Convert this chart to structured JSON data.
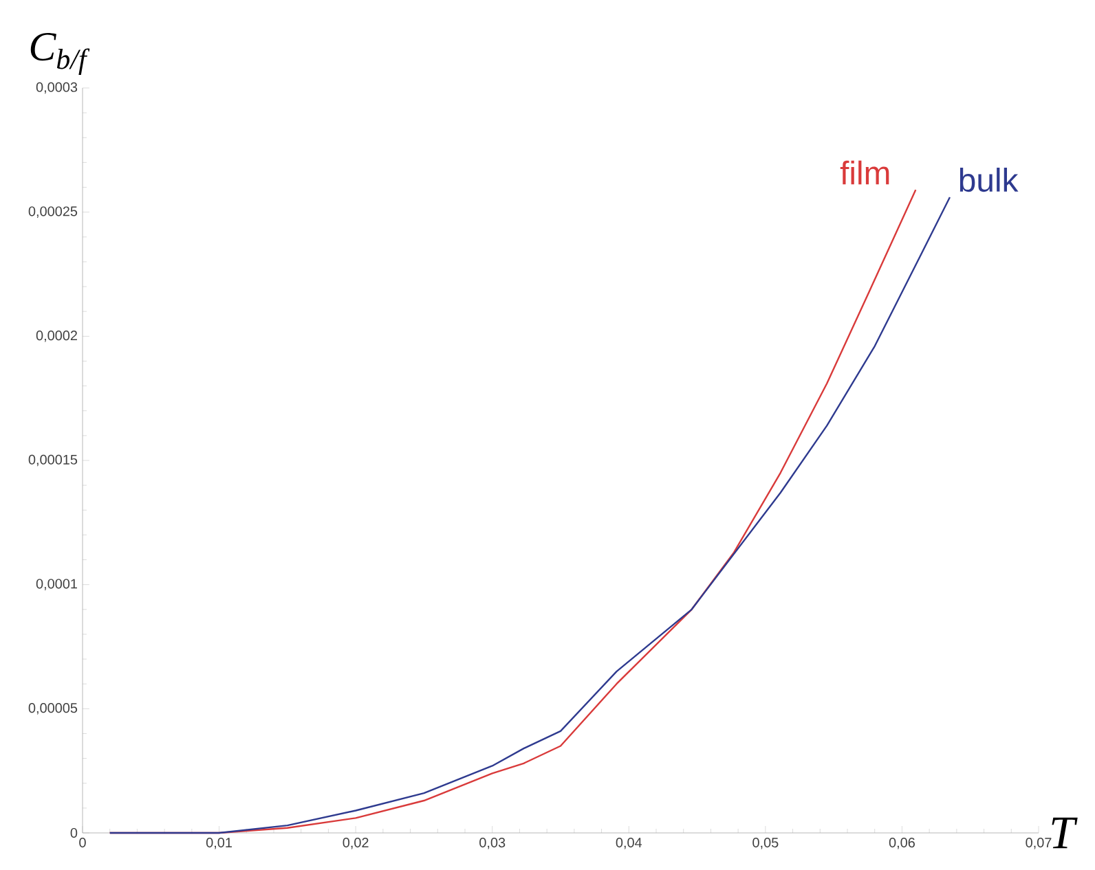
{
  "chart_data": {
    "type": "line",
    "xlabel": "T",
    "ylabel": "C$_{b/f}$",
    "xlim": [
      0,
      0.07
    ],
    "ylim": [
      0,
      0.0003
    ],
    "xticks": [
      0,
      {
        "value": 0.01,
        "label": "0,01"
      },
      {
        "value": 0.02,
        "label": "0,02"
      },
      {
        "value": 0.03,
        "label": "0,03"
      },
      {
        "value": 0.04,
        "label": "0,04"
      },
      {
        "value": 0.05,
        "label": "0,05"
      },
      {
        "value": 0.06,
        "label": "0,06"
      },
      {
        "value": 0.07,
        "label": "0,07"
      }
    ],
    "yticks": [
      0,
      {
        "value": 5e-05,
        "label": "0,00005"
      },
      {
        "value": 0.0001,
        "label": "0,0001"
      },
      {
        "value": 0.00015,
        "label": "0,00015"
      },
      {
        "value": 0.0002,
        "label": "0,0002"
      },
      {
        "value": 0.00025,
        "label": "0,00025"
      },
      {
        "value": 0.0003,
        "label": "0,0003"
      }
    ],
    "grid": false,
    "legend": false,
    "marker": "none",
    "line_style": "solid",
    "series": [
      {
        "name": "film",
        "color": "#d93a3a",
        "x": [
          0.002,
          0.01,
          0.015,
          0.02,
          0.025,
          0.03,
          0.0323,
          0.035,
          0.0391,
          0.0446,
          0.0477,
          0.0511,
          0.0545,
          0.0576,
          0.061
        ],
        "values": [
          0,
          0,
          2e-06,
          6e-06,
          1.3e-05,
          2.4e-05,
          2.8e-05,
          3.5e-05,
          6e-05,
          9e-05,
          0.000113,
          0.000145,
          0.000181,
          0.000218,
          0.000259
        ]
      },
      {
        "name": "bulk",
        "color": "#2e3a8f",
        "x": [
          0.002,
          0.01,
          0.015,
          0.02,
          0.025,
          0.03,
          0.0323,
          0.035,
          0.0391,
          0.0446,
          0.0511,
          0.0545,
          0.058,
          0.0614,
          0.0635
        ],
        "values": [
          0,
          0,
          3e-06,
          9e-06,
          1.6e-05,
          2.7e-05,
          3.4e-05,
          4.1e-05,
          6.5e-05,
          9e-05,
          0.000137,
          0.000164,
          0.000196,
          0.000233,
          0.000256
        ]
      }
    ]
  }
}
